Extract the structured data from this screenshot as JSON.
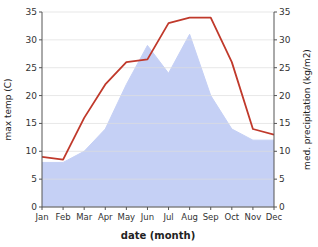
{
  "chart_data": {
    "type": "line",
    "categories": [
      "Jan",
      "Feb",
      "Mar",
      "Apr",
      "May",
      "Jun",
      "Jul",
      "Aug",
      "Sep",
      "Oct",
      "Nov",
      "Dec"
    ],
    "series": [
      {
        "type": "line",
        "color": "#c0392b",
        "values": [
          9,
          8.5,
          16,
          22,
          26,
          26.5,
          33,
          34,
          34,
          26,
          14,
          13
        ]
      },
      {
        "type": "area",
        "color": "#c5d0f5",
        "axis": "y2",
        "values": [
          8,
          8,
          10,
          14,
          22,
          29,
          24,
          31,
          20,
          14,
          12,
          12
        ]
      }
    ],
    "xlabel": "date (month)",
    "ylabel": "max temp (C)",
    "y2label": "med. precipitation (kg/m2)",
    "ylim": [
      0,
      35
    ],
    "yticks": [
      0,
      5,
      10,
      15,
      20,
      25,
      30,
      35
    ],
    "y2lim": [
      0,
      35
    ],
    "y2ticks": [
      0,
      5,
      10,
      15,
      20,
      25,
      30,
      35
    ],
    "grid": true
  }
}
